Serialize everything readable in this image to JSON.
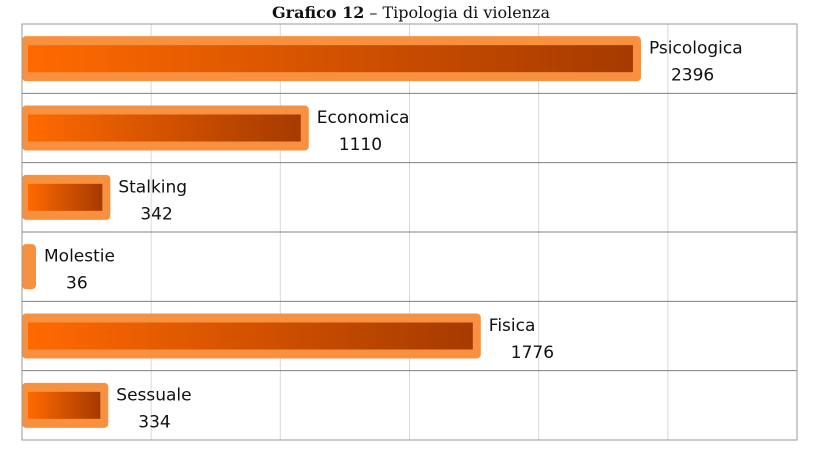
{
  "chart_data": {
    "type": "bar",
    "orientation": "horizontal",
    "title_bold": "Grafico 12",
    "title_rest": " – Tipologia di violenza",
    "categories": [
      "Psicologica",
      "Economica",
      "Stalking",
      "Molestie",
      "Fisica",
      "Sessuale"
    ],
    "values": [
      2396,
      1110,
      342,
      36,
      1776,
      334
    ],
    "xlim": [
      0,
      3000
    ],
    "grid": true,
    "legend": "none",
    "data_labels": "category and value",
    "colors": {
      "bar_outer": "#f7913f",
      "bar_gradient_start": "#ff6a00",
      "bar_gradient_end": "#a63a00",
      "gridline": "#d9d9d9",
      "separator": "#7f7f7f",
      "frame": "#9a9a9a"
    }
  }
}
